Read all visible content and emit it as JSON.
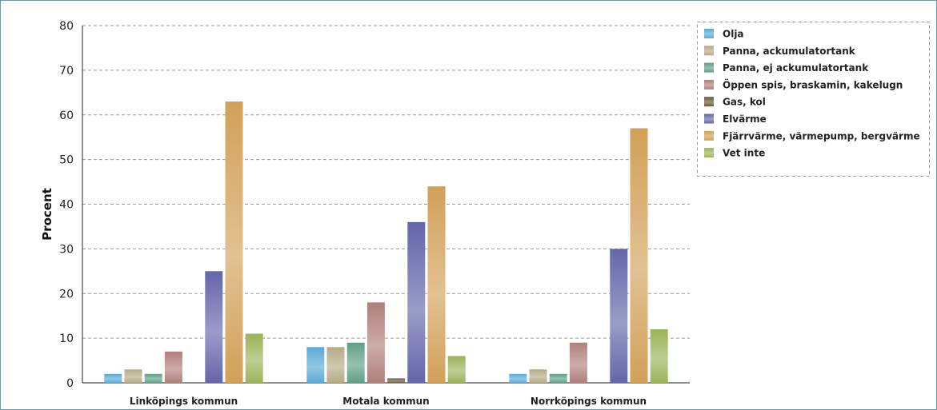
{
  "chart_data": {
    "type": "bar",
    "ylabel": "Procent",
    "xlabel": "",
    "ylim": [
      0,
      80
    ],
    "yticks": [
      0,
      10,
      20,
      30,
      40,
      50,
      60,
      70,
      80
    ],
    "grid": true,
    "legend_position": "top-right",
    "categories": [
      "Linköpings kommun",
      "Motala kommun",
      "Norrköpings kommun"
    ],
    "series": [
      {
        "name": "Olja",
        "color": "#5aa9d6",
        "values": [
          2,
          8,
          2
        ]
      },
      {
        "name": "Panna, ackumulatortank",
        "color": "#b5aa86",
        "values": [
          3,
          8,
          3
        ]
      },
      {
        "name": "Panna, ej ackumulatortank",
        "color": "#5f9f86",
        "values": [
          2,
          9,
          2
        ]
      },
      {
        "name": "Öppen spis, braskamin, kakelugn",
        "color": "#b07f7b",
        "values": [
          7,
          18,
          9
        ]
      },
      {
        "name": "Gas, kol",
        "color": "#6b5b3f",
        "values": [
          0,
          1,
          0
        ]
      },
      {
        "name": "Elvärme",
        "color": "#6466aa",
        "values": [
          25,
          36,
          30
        ]
      },
      {
        "name": "Fjärrvärme, värmepump, bergvärme",
        "color": "#d2a058",
        "values": [
          63,
          44,
          57
        ]
      },
      {
        "name": "Vet inte",
        "color": "#9bb359",
        "values": [
          11,
          6,
          12
        ]
      }
    ]
  }
}
